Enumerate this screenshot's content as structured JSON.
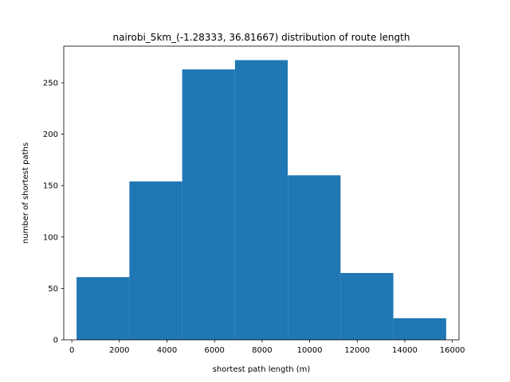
{
  "chart_data": {
    "type": "bar",
    "title": "nairobi_5km_(-1.28333, 36.81667) distribution of route length",
    "xlabel": "shortest path length (m)",
    "ylabel": "number of shortest paths",
    "bin_edges": [
      200,
      2420,
      4640,
      6860,
      9080,
      11300,
      13520,
      15740
    ],
    "values": [
      61,
      154,
      263,
      272,
      160,
      65,
      21
    ],
    "xlim": [
      -340,
      16280
    ],
    "ylim": [
      0,
      285.6
    ],
    "xticks": [
      0,
      2000,
      4000,
      6000,
      8000,
      10000,
      12000,
      14000,
      16000
    ],
    "yticks": [
      0,
      50,
      100,
      150,
      200,
      250
    ],
    "bar_color": "#1f77b4",
    "grid": false,
    "legend": "none"
  }
}
